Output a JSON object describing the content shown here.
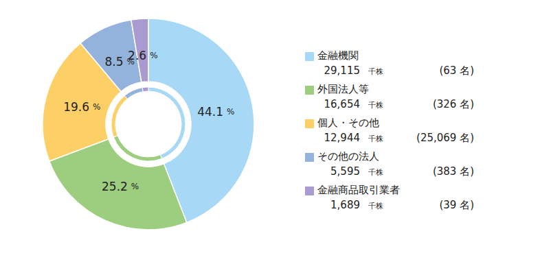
{
  "chart_data": {
    "type": "pie",
    "categories": [
      "金融機関",
      "外国法人等",
      "個人・その他",
      "その他の法人",
      "金融商品取引業者"
    ],
    "values": [
      44.1,
      25.2,
      19.6,
      8.5,
      2.6
    ],
    "value_labels": [
      "44.1 %",
      "25.2 %",
      "19.6 %",
      "8.5 %",
      "2.6 %"
    ],
    "data_labels": true,
    "colors": [
      "#a7d8f5",
      "#9dcd7e",
      "#fcd067",
      "#93b3dc",
      "#a99ad0"
    ],
    "legend": "right",
    "shares": [
      {
        "value": 29115,
        "label": "29,115"
      },
      {
        "value": 16654,
        "label": "16,654"
      },
      {
        "value": 12944,
        "label": "12,944"
      },
      {
        "value": 5595,
        "label": "5,595"
      },
      {
        "value": 1689,
        "label": "1,689"
      }
    ],
    "shares_unit": "千株",
    "holders": [
      {
        "value": 63,
        "label": "(63 名)"
      },
      {
        "value": 326,
        "label": "(326 名)"
      },
      {
        "value": 25069,
        "label": "(25,069 名)"
      },
      {
        "value": 383,
        "label": "(383 名)"
      },
      {
        "value": 39,
        "label": "(39 名)"
      }
    ]
  }
}
